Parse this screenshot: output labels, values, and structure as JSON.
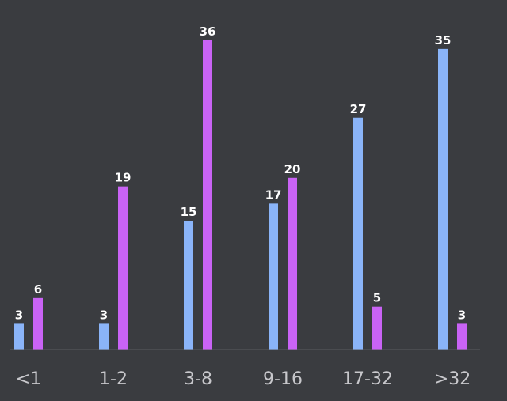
{
  "chart_data": {
    "type": "bar",
    "categories": [
      "<1",
      "1-2",
      "3-8",
      "9-16",
      "17-32",
      ">32"
    ],
    "series": [
      {
        "values": [
          3,
          3,
          15,
          17,
          27,
          35
        ],
        "color": "#8ab4f8"
      },
      {
        "values": [
          6,
          19,
          36,
          20,
          5,
          3
        ],
        "color": "#c963f5"
      }
    ],
    "title": "",
    "xlabel": "",
    "ylabel": "",
    "ylim": [
      0,
      36
    ],
    "grid": false,
    "legend": "none",
    "data_labels": true
  },
  "colors": {
    "background": "#3a3c40",
    "baseline": "#5a5c60",
    "label": "#ffffff",
    "tick": "#c8c8cc"
  }
}
